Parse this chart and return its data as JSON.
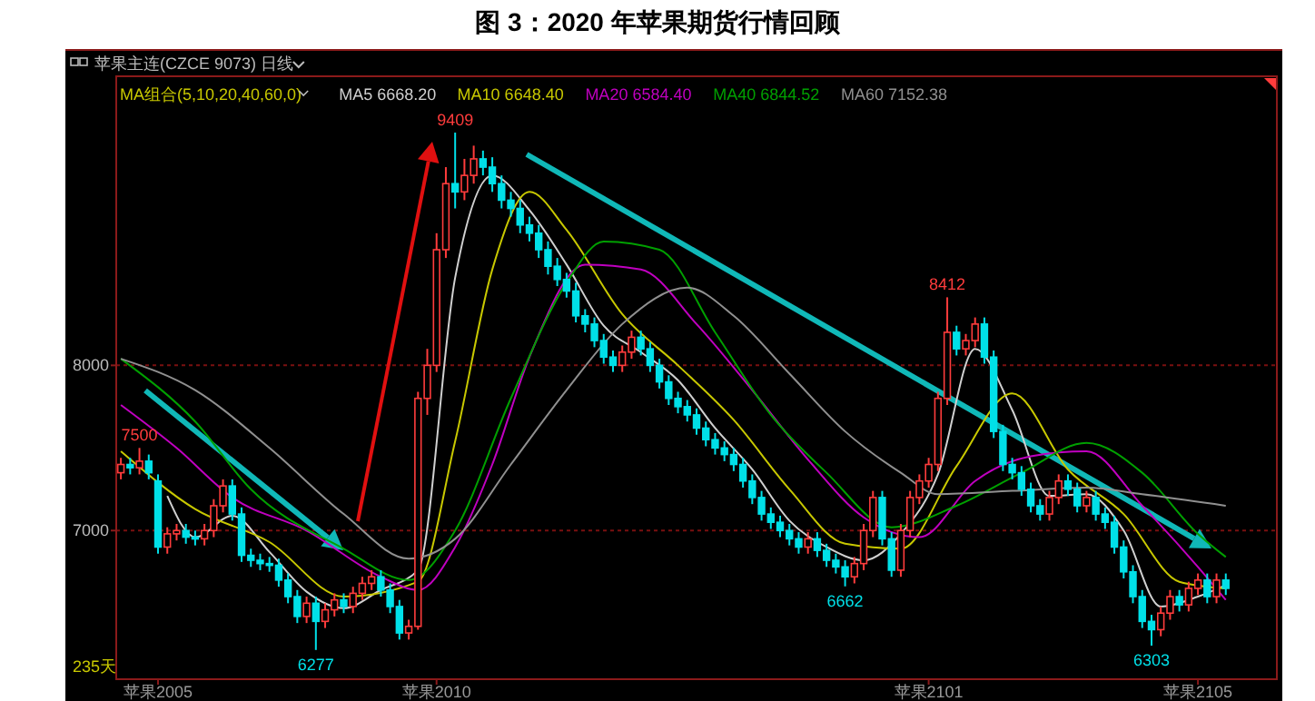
{
  "chart_data": {
    "type": "candlestick",
    "title": "图 3：2020 年苹果期货行情回顾",
    "subtitle": "苹果主连(CZCE 9073)  日线",
    "legend_title": "MA组合(5,10,20,40,60,0)",
    "legend": "top left",
    "grid": "y",
    "ylim": [
      6100,
      9750
    ],
    "yticks": [
      7000,
      8000
    ],
    "categories": [
      null,
      null,
      null,
      null,
      "苹果2005",
      null,
      null,
      null,
      null,
      null,
      null,
      null,
      null,
      null,
      null,
      null,
      null,
      null,
      null,
      null,
      null,
      null,
      null,
      null,
      null,
      null,
      null,
      null,
      null,
      null,
      null,
      null,
      null,
      null,
      "苹果2010",
      null,
      null,
      null,
      null,
      null,
      null,
      null,
      null,
      null,
      null,
      null,
      null,
      null,
      null,
      null,
      null,
      null,
      null,
      null,
      null,
      null,
      null,
      null,
      null,
      null,
      null,
      null,
      null,
      null,
      null,
      null,
      null,
      null,
      null,
      null,
      null,
      null,
      null,
      null,
      null,
      null,
      null,
      null,
      null,
      null,
      null,
      null,
      null,
      null,
      null,
      null,
      null,
      "苹果2101",
      null,
      null,
      null,
      null,
      null,
      null,
      null,
      null,
      null,
      null,
      null,
      null,
      null,
      null,
      null,
      null,
      null,
      null,
      null,
      null,
      null,
      null,
      null,
      null,
      null,
      null,
      null,
      null,
      "苹果2105",
      null,
      null,
      null
    ],
    "ohlc": [
      [
        7350,
        7440,
        7310,
        7400
      ],
      [
        7400,
        7440,
        7340,
        7380
      ],
      [
        7380,
        7500,
        7340,
        7420
      ],
      [
        7420,
        7460,
        7310,
        7350
      ],
      [
        7300,
        7340,
        6860,
        6900
      ],
      [
        6900,
        7020,
        6860,
        6980
      ],
      [
        6980,
        7040,
        6940,
        7000
      ],
      [
        7000,
        7040,
        6920,
        6960
      ],
      [
        6960,
        7000,
        6910,
        6950
      ],
      [
        6950,
        7040,
        6910,
        7000
      ],
      [
        7000,
        7190,
        6960,
        7150
      ],
      [
        7150,
        7310,
        7110,
        7270
      ],
      [
        7270,
        7310,
        7060,
        7100
      ],
      [
        7100,
        7140,
        6810,
        6850
      ],
      [
        6850,
        6890,
        6780,
        6820
      ],
      [
        6820,
        6860,
        6760,
        6800
      ],
      [
        6800,
        6840,
        6750,
        6790
      ],
      [
        6790,
        6830,
        6660,
        6700
      ],
      [
        6700,
        6740,
        6560,
        6600
      ],
      [
        6600,
        6640,
        6440,
        6480
      ],
      [
        6480,
        6600,
        6440,
        6560
      ],
      [
        6560,
        6600,
        6277,
        6450
      ],
      [
        6450,
        6560,
        6410,
        6520
      ],
      [
        6520,
        6620,
        6480,
        6580
      ],
      [
        6580,
        6620,
        6500,
        6540
      ],
      [
        6540,
        6660,
        6500,
        6620
      ],
      [
        6620,
        6720,
        6580,
        6680
      ],
      [
        6680,
        6760,
        6640,
        6720
      ],
      [
        6720,
        6760,
        6600,
        6640
      ],
      [
        6640,
        6680,
        6500,
        6540
      ],
      [
        6540,
        6580,
        6340,
        6380
      ],
      [
        6380,
        6460,
        6340,
        6420
      ],
      [
        6420,
        7840,
        6400,
        7800
      ],
      [
        7800,
        8100,
        7700,
        8000
      ],
      [
        8000,
        8800,
        7960,
        8700
      ],
      [
        8700,
        9200,
        8650,
        9100
      ],
      [
        9100,
        9409,
        8950,
        9050
      ],
      [
        9050,
        9250,
        9000,
        9150
      ],
      [
        9150,
        9330,
        9100,
        9250
      ],
      [
        9250,
        9300,
        9150,
        9200
      ],
      [
        9200,
        9260,
        9050,
        9100
      ],
      [
        9100,
        9150,
        8950,
        9000
      ],
      [
        9000,
        9050,
        8900,
        8950
      ],
      [
        8950,
        9000,
        8800,
        8850
      ],
      [
        8850,
        8900,
        8750,
        8800
      ],
      [
        8800,
        8850,
        8650,
        8700
      ],
      [
        8700,
        8750,
        8550,
        8600
      ],
      [
        8600,
        8650,
        8480,
        8520
      ],
      [
        8520,
        8560,
        8410,
        8450
      ],
      [
        8450,
        8500,
        8260,
        8300
      ],
      [
        8300,
        8340,
        8200,
        8250
      ],
      [
        8250,
        8290,
        8110,
        8150
      ],
      [
        8150,
        8190,
        8010,
        8050
      ],
      [
        8050,
        8090,
        7960,
        8000
      ],
      [
        8000,
        8120,
        7960,
        8080
      ],
      [
        8080,
        8210,
        8040,
        8170
      ],
      [
        8170,
        8210,
        8060,
        8100
      ],
      [
        8100,
        8140,
        7960,
        8000
      ],
      [
        8000,
        8040,
        7860,
        7900
      ],
      [
        7900,
        7940,
        7760,
        7800
      ],
      [
        7800,
        7840,
        7710,
        7750
      ],
      [
        7750,
        7790,
        7660,
        7700
      ],
      [
        7700,
        7740,
        7580,
        7620
      ],
      [
        7620,
        7660,
        7510,
        7550
      ],
      [
        7550,
        7590,
        7460,
        7500
      ],
      [
        7500,
        7540,
        7420,
        7460
      ],
      [
        7460,
        7500,
        7360,
        7400
      ],
      [
        7400,
        7440,
        7260,
        7300
      ],
      [
        7300,
        7340,
        7160,
        7200
      ],
      [
        7200,
        7240,
        7060,
        7100
      ],
      [
        7100,
        7140,
        7010,
        7050
      ],
      [
        7050,
        7090,
        6960,
        7000
      ],
      [
        7000,
        7040,
        6910,
        6950
      ],
      [
        6950,
        6990,
        6860,
        6900
      ],
      [
        6900,
        6990,
        6860,
        6950
      ],
      [
        6950,
        6990,
        6840,
        6880
      ],
      [
        6880,
        6920,
        6780,
        6820
      ],
      [
        6820,
        6860,
        6740,
        6780
      ],
      [
        6780,
        6820,
        6662,
        6720
      ],
      [
        6720,
        6840,
        6680,
        6800
      ],
      [
        6800,
        7040,
        6760,
        7000
      ],
      [
        7000,
        7240,
        6960,
        7200
      ],
      [
        7200,
        7240,
        6910,
        6950
      ],
      [
        6950,
        6990,
        6720,
        6760
      ],
      [
        6760,
        7040,
        6720,
        7000
      ],
      [
        7000,
        7240,
        6960,
        7200
      ],
      [
        7200,
        7340,
        7160,
        7300
      ],
      [
        7300,
        7440,
        7260,
        7400
      ],
      [
        7400,
        7840,
        7360,
        7800
      ],
      [
        7800,
        8412,
        7760,
        8200
      ],
      [
        8200,
        8240,
        8060,
        8100
      ],
      [
        8100,
        8190,
        8060,
        8150
      ],
      [
        8150,
        8290,
        8110,
        8250
      ],
      [
        8250,
        8290,
        8010,
        8050
      ],
      [
        8050,
        8090,
        7560,
        7600
      ],
      [
        7600,
        7640,
        7360,
        7400
      ],
      [
        7400,
        7440,
        7310,
        7350
      ],
      [
        7350,
        7390,
        7210,
        7250
      ],
      [
        7250,
        7290,
        7110,
        7150
      ],
      [
        7150,
        7190,
        7060,
        7100
      ],
      [
        7100,
        7240,
        7060,
        7200
      ],
      [
        7200,
        7340,
        7160,
        7300
      ],
      [
        7300,
        7340,
        7210,
        7250
      ],
      [
        7250,
        7290,
        7110,
        7150
      ],
      [
        7150,
        7240,
        7110,
        7200
      ],
      [
        7200,
        7240,
        7060,
        7100
      ],
      [
        7100,
        7140,
        7010,
        7050
      ],
      [
        7050,
        7090,
        6860,
        6900
      ],
      [
        6900,
        6940,
        6710,
        6750
      ],
      [
        6750,
        6790,
        6560,
        6600
      ],
      [
        6600,
        6640,
        6410,
        6450
      ],
      [
        6450,
        6490,
        6303,
        6400
      ],
      [
        6400,
        6540,
        6360,
        6500
      ],
      [
        6500,
        6640,
        6460,
        6600
      ],
      [
        6600,
        6640,
        6510,
        6550
      ],
      [
        6550,
        6690,
        6510,
        6650
      ],
      [
        6650,
        6740,
        6610,
        6700
      ],
      [
        6700,
        6740,
        6560,
        6600
      ],
      [
        6600,
        6740,
        6560,
        6700
      ],
      [
        6700,
        6740,
        6610,
        6650
      ]
    ],
    "series": [
      {
        "name": "MA5 6668.20",
        "type": "line",
        "color": "#d0d0d0",
        "values": [
          null,
          null,
          null,
          null,
          null,
          7210,
          null,
          null,
          6960,
          null,
          null,
          null,
          7090,
          null,
          null,
          null,
          6870,
          null,
          null,
          null,
          6630,
          null,
          null,
          null,
          6530,
          null,
          null,
          null,
          6640,
          null,
          null,
          null,
          6760,
          null,
          null,
          null,
          8530,
          null,
          null,
          null,
          9150,
          null,
          null,
          null,
          8940,
          null,
          null,
          null,
          8610,
          null,
          null,
          null,
          8240,
          null,
          null,
          null,
          8080,
          null,
          null,
          null,
          7910,
          null,
          null,
          null,
          7620,
          null,
          null,
          null,
          7370,
          null,
          null,
          null,
          7060,
          null,
          null,
          null,
          6900,
          null,
          null,
          null,
          6820,
          null,
          null,
          null,
          6980,
          null,
          null,
          null,
          7340,
          null,
          null,
          null,
          8100,
          null,
          null,
          null,
          7730,
          null,
          null,
          null,
          7210,
          null,
          null,
          null,
          7220,
          null,
          null,
          null,
          7000,
          null,
          null,
          null,
          6540,
          null,
          null,
          null,
          6600,
          null,
          null,
          6670
        ]
      },
      {
        "name": "MA10 6648.40",
        "type": "line",
        "color": "#c8c800",
        "values": [
          7480,
          null,
          null,
          null,
          null,
          null,
          null,
          null,
          7130,
          null,
          null,
          null,
          null,
          null,
          null,
          null,
          6930,
          null,
          null,
          null,
          null,
          null,
          null,
          null,
          6600,
          null,
          null,
          null,
          null,
          null,
          null,
          null,
          6690,
          null,
          null,
          null,
          7540,
          null,
          null,
          null,
          8580,
          null,
          null,
          null,
          9050,
          null,
          null,
          null,
          8820,
          null,
          null,
          null,
          null,
          null,
          8310,
          null,
          null,
          null,
          null,
          null,
          8000,
          null,
          null,
          null,
          null,
          null,
          7670,
          null,
          null,
          null,
          null,
          null,
          7250,
          null,
          null,
          null,
          null,
          null,
          6920,
          null,
          null,
          null,
          null,
          null,
          6890,
          null,
          null,
          null,
          null,
          null,
          7390,
          null,
          null,
          null,
          null,
          null,
          7830,
          null,
          null,
          null,
          null,
          null,
          7370,
          null,
          null,
          null,
          null,
          null,
          7100,
          null,
          null,
          null,
          null,
          null,
          6690,
          null,
          null,
          null,
          null,
          6650
        ]
      },
      {
        "name": "MA20 6584.40",
        "type": "line",
        "color": "#c000c0",
        "values": [
          7760,
          null,
          null,
          null,
          null,
          null,
          7500,
          null,
          null,
          null,
          null,
          null,
          7200,
          null,
          null,
          null,
          null,
          null,
          null,
          null,
          7000,
          null,
          null,
          null,
          null,
          null,
          null,
          null,
          6720,
          null,
          null,
          null,
          6640,
          null,
          null,
          null,
          6900,
          null,
          null,
          null,
          7400,
          null,
          null,
          null,
          8050,
          null,
          null,
          null,
          null,
          null,
          8610,
          null,
          null,
          null,
          null,
          null,
          8580,
          null,
          null,
          null,
          null,
          null,
          8250,
          null,
          null,
          null,
          null,
          null,
          7850,
          null,
          null,
          null,
          null,
          null,
          7430,
          null,
          null,
          null,
          null,
          null,
          7080,
          null,
          null,
          null,
          null,
          null,
          6960,
          null,
          null,
          null,
          null,
          null,
          7300,
          null,
          null,
          null,
          null,
          null,
          7450,
          null,
          null,
          null,
          null,
          null,
          7480,
          null,
          null,
          null,
          null,
          null,
          7150,
          null,
          null,
          null,
          null,
          null,
          6780,
          null,
          null,
          6580
        ]
      },
      {
        "name": "MA40 6844.52",
        "type": "line",
        "color": "#00a000",
        "values": [
          8040,
          null,
          null,
          null,
          null,
          null,
          null,
          null,
          7660,
          null,
          null,
          null,
          null,
          null,
          7250,
          null,
          null,
          null,
          null,
          null,
          null,
          null,
          null,
          null,
          6890,
          null,
          null,
          null,
          null,
          null,
          null,
          6700,
          null,
          null,
          null,
          null,
          7000,
          null,
          null,
          null,
          null,
          null,
          7800,
          null,
          null,
          null,
          null,
          null,
          8500,
          null,
          null,
          null,
          8750,
          null,
          null,
          null,
          null,
          null,
          8700,
          null,
          null,
          null,
          null,
          null,
          8200,
          null,
          null,
          null,
          null,
          null,
          7700,
          null,
          null,
          null,
          null,
          null,
          7350,
          null,
          null,
          null,
          null,
          null,
          null,
          7020,
          null,
          null,
          null,
          null,
          null,
          null,
          7150,
          null,
          null,
          null,
          null,
          null,
          null,
          7350,
          null,
          null,
          null,
          null,
          null,
          null,
          7530,
          null,
          null,
          null,
          null,
          null,
          7350,
          null,
          null,
          null,
          null,
          null,
          6980,
          null,
          null,
          6840
        ]
      },
      {
        "name": "MA60 7152.38",
        "type": "line",
        "color": "#909090",
        "values": [
          8040,
          null,
          null,
          null,
          null,
          null,
          null,
          null,
          7850,
          null,
          null,
          null,
          null,
          null,
          null,
          null,
          7500,
          null,
          null,
          null,
          null,
          null,
          null,
          null,
          7100,
          null,
          null,
          null,
          null,
          null,
          null,
          6830,
          null,
          null,
          null,
          null,
          6950,
          null,
          null,
          null,
          null,
          null,
          7400,
          null,
          null,
          null,
          null,
          null,
          7850,
          null,
          null,
          null,
          null,
          null,
          8250,
          null,
          null,
          null,
          null,
          null,
          null,
          8470,
          null,
          null,
          null,
          null,
          8300,
          null,
          null,
          null,
          null,
          null,
          7950,
          null,
          null,
          null,
          null,
          null,
          7600,
          null,
          null,
          null,
          null,
          null,
          7350,
          null,
          null,
          null,
          7220,
          null,
          null,
          null,
          null,
          null,
          null,
          null,
          7240,
          null,
          null,
          null,
          null,
          null,
          null,
          null,
          7260,
          null,
          null,
          null,
          null,
          null,
          7220,
          null,
          null,
          null,
          null,
          null,
          null,
          null,
          null,
          7150
        ]
      }
    ],
    "annotations": [
      {
        "text": "7500",
        "y": 7500
      },
      {
        "text": "9409",
        "y": 9409
      },
      {
        "text": "8412",
        "y": 8412
      },
      {
        "text": "6277",
        "y": 6277
      },
      {
        "text": "6662",
        "y": 6662
      },
      {
        "text": "6303",
        "y": 6303
      },
      "235天"
    ]
  }
}
